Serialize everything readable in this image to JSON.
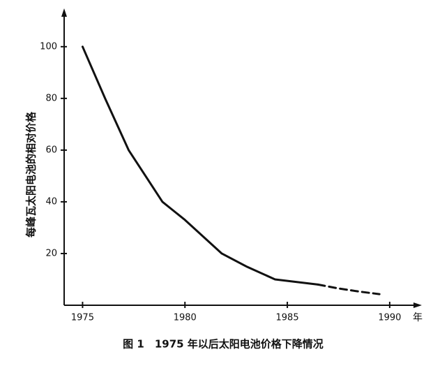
{
  "chart_data": {
    "type": "line",
    "ylabel": "每峰瓦太阳电池的相对价格",
    "xunit": "年",
    "caption": "图 1　1975 年以后太阳电池价格下降情况",
    "xlim": [
      1974.1,
      1991.4
    ],
    "xticks": [
      1975,
      1980,
      1985,
      1990
    ],
    "ylim": [
      0,
      114
    ],
    "yticks": [
      20,
      40,
      60,
      80,
      100
    ],
    "series": [
      {
        "color": "#111111",
        "dashed": false,
        "x": [
          1975,
          1976.1,
          1977.25,
          1978.9,
          1980,
          1981.8,
          1983,
          1984.4,
          1986.5
        ],
        "values": [
          100,
          80,
          60,
          40,
          33,
          20,
          15,
          10,
          8
        ]
      },
      {
        "color": "#111111",
        "dashed": true,
        "x": [
          1986.5,
          1987.5,
          1988.5,
          1989.5
        ],
        "values": [
          8,
          6.5,
          5.3,
          4.3
        ]
      }
    ]
  }
}
